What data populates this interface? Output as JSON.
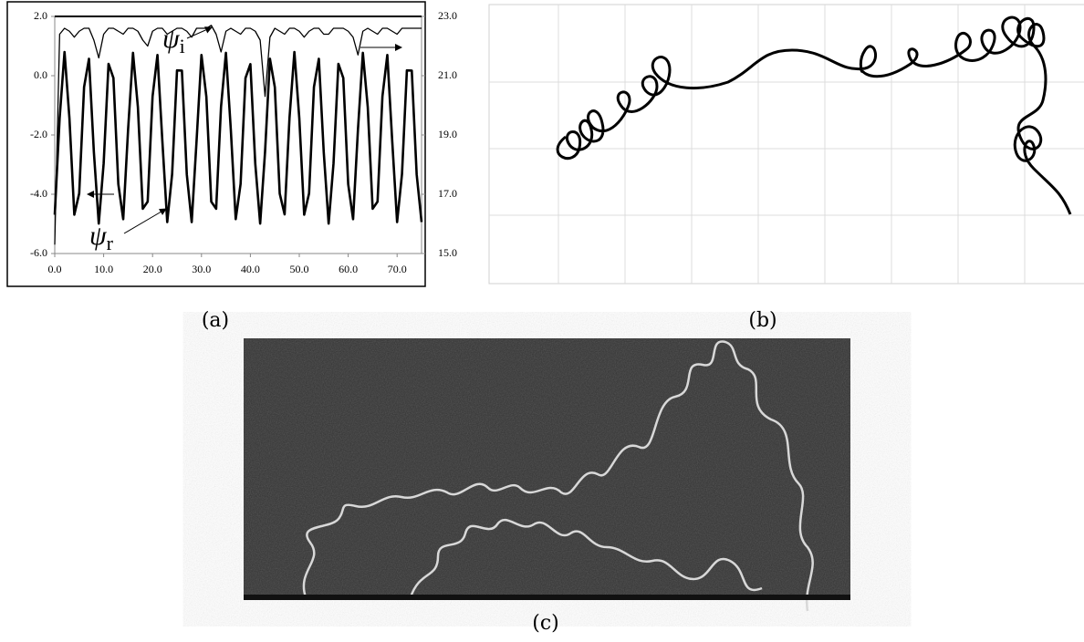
{
  "chart_data": {
    "type": "line",
    "x": [
      0,
      1,
      2,
      3,
      4,
      5,
      6,
      7,
      8,
      9,
      10,
      11,
      12,
      13,
      14,
      15,
      16,
      17,
      18,
      19,
      20,
      21,
      22,
      23,
      24,
      25,
      26,
      27,
      28,
      29,
      30,
      31,
      32,
      33,
      34,
      35,
      36,
      37,
      38,
      39,
      40,
      41,
      42,
      43,
      44,
      45,
      46,
      47,
      48,
      49,
      50,
      51,
      52,
      53,
      54,
      55,
      56,
      57,
      58,
      59,
      60,
      61,
      62,
      63,
      64,
      65,
      66,
      67,
      68,
      69,
      70,
      71,
      72,
      73,
      74,
      75
    ],
    "series": [
      {
        "name": "ψr",
        "color": "#000000",
        "values": [
          -4.69,
          -1.43,
          0.8,
          -1.43,
          -4.69,
          -3.97,
          -0.38,
          0.57,
          -2.58,
          -4.99,
          -2.96,
          0.4,
          -0.08,
          -3.66,
          -4.84,
          -1.81,
          0.77,
          -1.06,
          -4.49,
          -4.25,
          -0.7,
          0.7,
          -2.2,
          -4.94,
          -3.32,
          0.18,
          0.17,
          -3.33,
          -4.94,
          -2.19,
          0.7,
          -0.71,
          -4.25,
          -4.49,
          -1.05,
          0.77,
          -1.82,
          -4.84,
          -3.65,
          -0.08,
          0.39,
          -2.97,
          -4.99,
          -2.57,
          0.57,
          -0.39,
          -3.98,
          -4.68,
          -1.42,
          0.8,
          -1.43,
          -4.69,
          -3.97,
          -0.38,
          0.57,
          -2.58,
          -4.99,
          -2.96,
          0.4,
          -0.08,
          -3.66,
          -4.84,
          -1.81,
          0.77,
          -1.06,
          -4.49,
          -4.25,
          -0.7,
          0.7,
          -2.2,
          -4.94,
          -3.32,
          0.18,
          0.17,
          -3.33,
          -4.94
        ]
      },
      {
        "name": "ψi",
        "color": "#000000",
        "axis": "y2",
        "values": [
          15.3,
          22.4,
          22.6,
          22.5,
          22.3,
          22.5,
          22.6,
          22.6,
          22.2,
          21.6,
          22.4,
          22.6,
          22.6,
          22.5,
          22.4,
          22.6,
          22.6,
          22.5,
          22.2,
          22.0,
          22.5,
          22.6,
          22.6,
          22.4,
          22.5,
          22.6,
          22.6,
          22.5,
          22.3,
          22.6,
          22.6,
          22.6,
          22.7,
          22.4,
          21.8,
          22.5,
          22.6,
          22.5,
          22.4,
          22.6,
          22.6,
          22.5,
          22.2,
          20.3,
          22.3,
          22.6,
          22.5,
          22.4,
          22.6,
          22.6,
          22.5,
          22.3,
          22.5,
          22.6,
          22.6,
          22.4,
          22.4,
          22.6,
          22.6,
          22.6,
          22.5,
          22.3,
          21.7,
          22.5,
          22.6,
          22.5,
          22.4,
          22.6,
          22.6,
          22.5,
          22.4,
          22.6,
          22.6,
          22.6,
          22.6,
          22.6
        ]
      }
    ],
    "xlim": [
      0,
      75
    ],
    "xticks": [
      {
        "value": 0,
        "label": "0.0"
      },
      {
        "value": 10,
        "label": "10.0"
      },
      {
        "value": 20,
        "label": "20.0"
      },
      {
        "value": 30,
        "label": "30.0"
      },
      {
        "value": 40,
        "label": "40.0"
      },
      {
        "value": 50,
        "label": "50.0"
      },
      {
        "value": 60,
        "label": "60.0"
      },
      {
        "value": 70,
        "label": "70.0"
      }
    ],
    "ylim": [
      -6,
      2
    ],
    "yticks": [
      {
        "value": -6,
        "label": "-6.0"
      },
      {
        "value": -4,
        "label": "-4.0"
      },
      {
        "value": -2,
        "label": "-2.0"
      },
      {
        "value": 0,
        "label": "0.0"
      },
      {
        "value": 2,
        "label": "2.0"
      }
    ],
    "y2lim": [
      15,
      23
    ],
    "y2ticks": [
      {
        "value": 15,
        "label": "15.0"
      },
      {
        "value": 17,
        "label": "17.0"
      },
      {
        "value": 19,
        "label": "19.0"
      },
      {
        "value": 21,
        "label": "21.0"
      },
      {
        "value": 23,
        "label": "23.0"
      }
    ],
    "annotations": [
      {
        "symbol": "ψ",
        "subscript": "i"
      },
      {
        "symbol": "ψ",
        "subscript": "r"
      }
    ]
  },
  "captions": {
    "a": "(a)",
    "b": "(b)",
    "c": "(c)"
  }
}
